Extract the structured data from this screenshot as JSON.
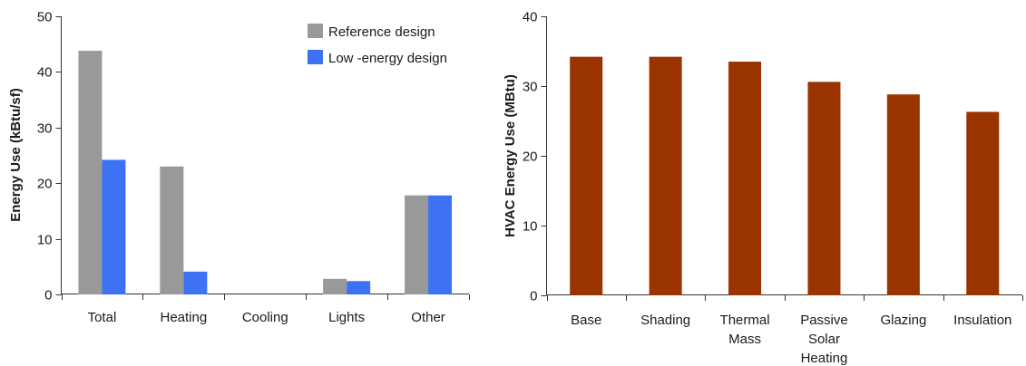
{
  "chart_data": [
    {
      "type": "bar",
      "categories": [
        "Total",
        "Heating",
        "Cooling",
        "Lights",
        "Other"
      ],
      "series": [
        {
          "name": "Reference design",
          "values": [
            43.8,
            23.0,
            0,
            2.8,
            17.8
          ],
          "color": "#999999"
        },
        {
          "name": "Low -energy design",
          "values": [
            24.2,
            4.1,
            0,
            2.4,
            17.8
          ],
          "color": "#3d72f5"
        }
      ],
      "ylabel": "Energy Use (kBtu/sf)",
      "ylim": [
        0,
        50
      ],
      "yticks": [
        "0",
        "10",
        "20",
        "30",
        "40",
        "50"
      ],
      "legend": "top-right",
      "grid": false
    },
    {
      "type": "bar",
      "categories": [
        [
          "Base"
        ],
        [
          "Shading"
        ],
        [
          "Thermal",
          "Mass"
        ],
        [
          "Passive",
          "Solar",
          "Heating"
        ],
        [
          "Glazing"
        ],
        [
          "Insulation"
        ]
      ],
      "values": [
        34.2,
        34.2,
        33.5,
        30.6,
        28.8,
        26.3
      ],
      "color": "#993300",
      "ylabel": "HVAC Energy Use (MBtu)",
      "ylim": [
        0,
        40
      ],
      "yticks": [
        "0",
        "10",
        "20",
        "30",
        "40"
      ],
      "grid": false
    }
  ]
}
